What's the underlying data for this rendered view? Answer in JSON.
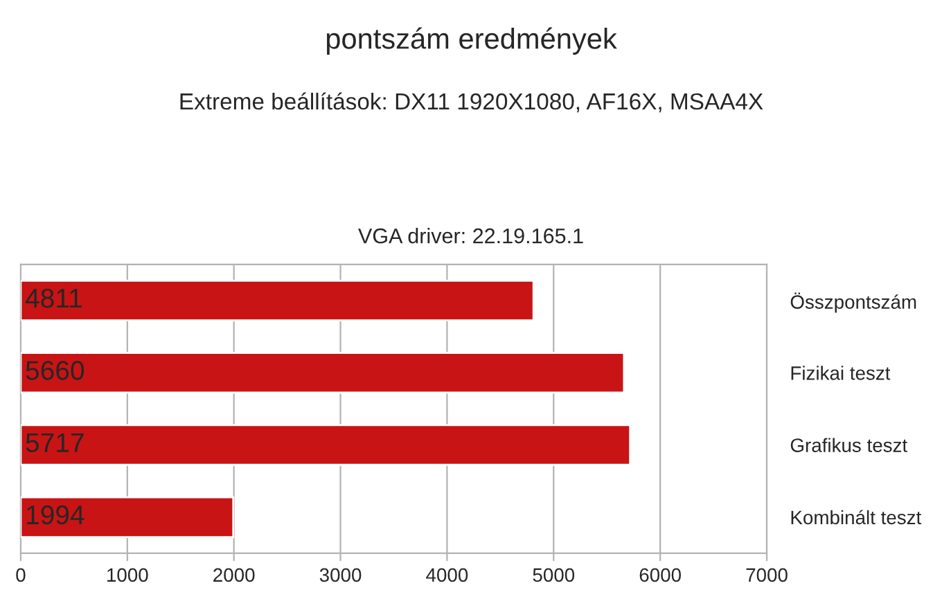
{
  "chart_data": {
    "type": "bar",
    "orientation": "horizontal",
    "title": "pontszám eredmények",
    "subtitle": "Extreme beállítások: DX11 1920X1080, AF16X, MSAA4X",
    "annotations": [
      "VGA driver: 22.19.165.1"
    ],
    "categories": [
      "Összpontszám",
      "Fizikai teszt",
      "Grafikus teszt",
      "Kombinált teszt"
    ],
    "values": [
      4811,
      5660,
      5717,
      1994
    ],
    "color": "#c81414",
    "xlim": [
      0,
      7000
    ],
    "xticks": [
      0,
      1000,
      2000,
      3000,
      4000,
      5000,
      6000,
      7000
    ],
    "grid": "x",
    "data_labels": true
  }
}
